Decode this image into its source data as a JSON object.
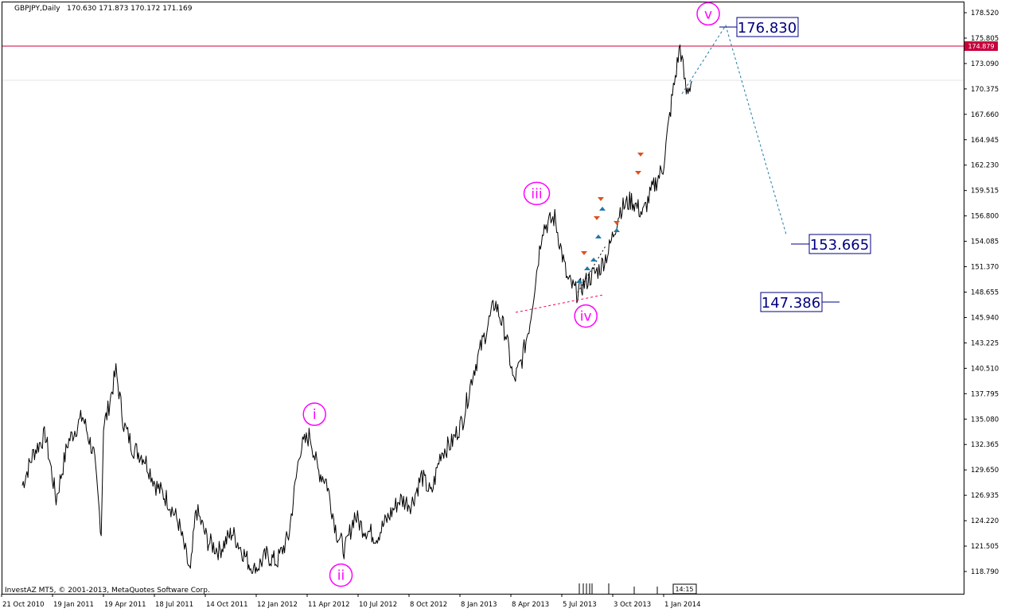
{
  "header": {
    "symbol": "GBPJPY,Daily",
    "ohlc": "170.630 171.873 170.172 171.169"
  },
  "footer": {
    "copyright": "InvestAZ MT5, © 2001-2013, MetaQuotes Software Corp.",
    "time_box": "14:15"
  },
  "colors": {
    "price_line": "#000000",
    "wave_label": "#ff00ff",
    "current_price_line": "#c8003c",
    "current_price_tag": "#c8003c",
    "projection": "#1e7aa8",
    "target_box_text": "#000080",
    "trendline": "#ff0050",
    "buy_arrow": "#1e7aa8",
    "sell_arrow": "#e05020"
  },
  "chart_data": {
    "type": "line",
    "title": "GBPJPY,Daily",
    "ylim": [
      117.6,
      178.8
    ],
    "y_ticks": [
      "178.520",
      "175.805",
      "173.090",
      "170.375",
      "167.660",
      "164.945",
      "162.230",
      "159.515",
      "156.800",
      "154.085",
      "151.370",
      "148.655",
      "145.940",
      "143.225",
      "140.510",
      "137.795",
      "135.080",
      "132.365",
      "129.650",
      "126.935",
      "124.220",
      "121.505",
      "118.790"
    ],
    "x_ticks": [
      "21 Oct 2010",
      "19 Jan 2011",
      "19 Apr 2011",
      "18 Jul 2011",
      "14 Oct 2011",
      "12 Jan 2012",
      "11 Apr 2012",
      "10 Jul 2012",
      "8 Oct 2012",
      "8 Jan 2013",
      "8 Apr 2013",
      "5 Jul 2013",
      "3 Oct 2013",
      "1 Jan 2014"
    ],
    "current_price": "174.879",
    "series": [
      {
        "x": [
          "2010-10-21",
          "2010-11-10",
          "2010-12-01",
          "2010-12-20",
          "2011-01-10",
          "2011-02-05",
          "2011-02-25",
          "2011-03-10",
          "2011-03-14",
          "2011-03-20",
          "2011-04-05",
          "2011-04-19",
          "2011-05-05",
          "2011-05-25",
          "2011-06-15",
          "2011-07-05",
          "2011-07-25",
          "2011-08-15",
          "2011-08-25",
          "2011-09-15",
          "2011-10-05",
          "2011-10-28",
          "2011-11-15",
          "2011-12-05",
          "2011-12-28",
          "2012-01-15",
          "2012-02-05",
          "2012-02-25",
          "2012-03-14",
          "2012-03-28",
          "2012-04-12",
          "2012-04-30",
          "2012-05-15",
          "2012-06-01",
          "2012-06-15",
          "2012-07-10",
          "2012-07-30",
          "2012-08-20",
          "2012-09-10",
          "2012-09-28",
          "2012-10-15",
          "2012-11-01",
          "2012-11-20",
          "2012-12-10",
          "2012-12-28",
          "2013-01-15",
          "2013-02-05",
          "2013-02-25",
          "2013-03-10",
          "2013-03-25",
          "2013-04-08",
          "2013-04-30",
          "2013-05-22",
          "2013-06-13",
          "2013-06-30",
          "2013-07-20",
          "2013-08-10",
          "2013-08-25",
          "2013-09-15",
          "2013-10-05",
          "2013-10-25",
          "2013-11-10",
          "2013-11-30",
          "2013-12-15",
          "2013-12-30",
          "2014-01-10",
          "2014-01-20"
        ],
        "values": [
          128.0,
          131.5,
          133.4,
          126.5,
          132.6,
          135.4,
          131.2,
          123.0,
          134.5,
          135.5,
          140.2,
          134.5,
          132.0,
          131.0,
          128.0,
          126.5,
          124.0,
          118.5,
          125.5,
          122.0,
          121.0,
          123.0,
          121.0,
          118.8,
          120.5,
          119.8,
          122.5,
          131.8,
          133.4,
          129.6,
          128.5,
          123.0,
          121.0,
          124.8,
          123.5,
          122.5,
          124.5,
          126.5,
          126.0,
          129.0,
          127.0,
          131.5,
          132.5,
          135.0,
          140.0,
          143.5,
          147.6,
          144.0,
          139.0,
          141.5,
          145.5,
          155.5,
          156.6,
          150.0,
          148.6,
          150.0,
          151.2,
          153.0,
          157.5,
          158.5,
          157.0,
          159.5,
          162.0,
          169.0,
          175.0,
          170.0,
          171.2
        ]
      }
    ],
    "wave_labels": [
      {
        "label": "i",
        "date": "2012-03-22",
        "price": 135.6
      },
      {
        "label": "ii",
        "date": "2012-05-08",
        "price": 118.4
      },
      {
        "label": "iii",
        "date": "2013-04-20",
        "price": 159.2
      },
      {
        "label": "iv",
        "date": "2013-07-16",
        "price": 146.1
      },
      {
        "label": "v",
        "date": "2014-02-18",
        "price": 178.4
      }
    ],
    "targets": [
      "176.830",
      "153.665",
      "147.386"
    ]
  }
}
